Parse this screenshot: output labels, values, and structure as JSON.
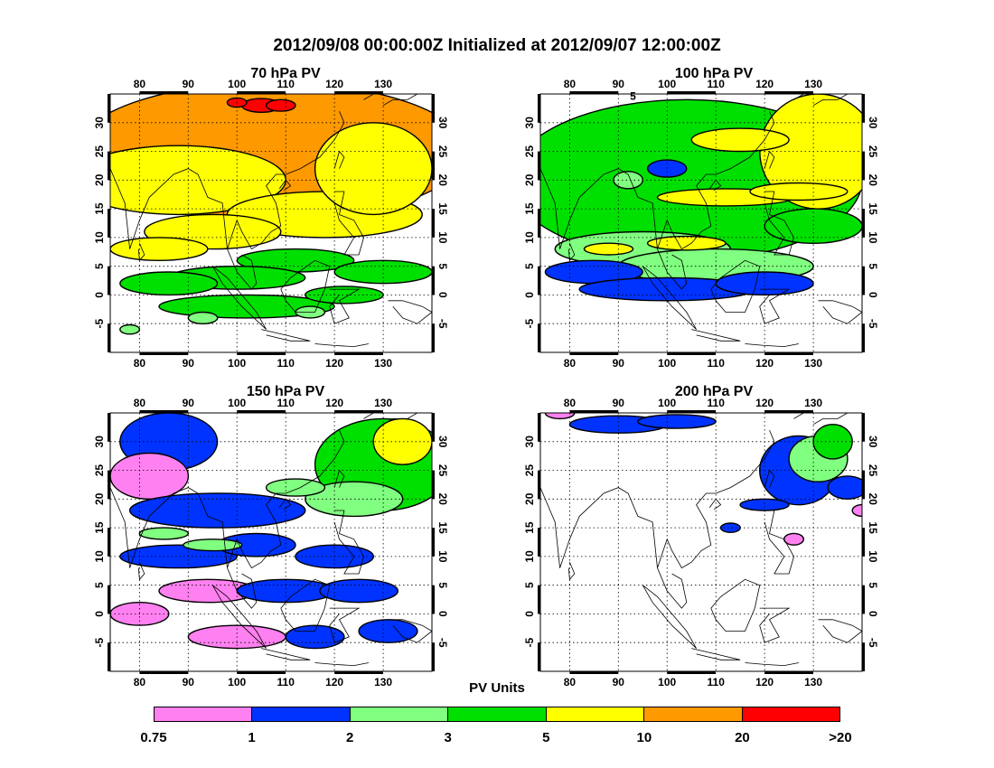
{
  "title": "2012/09/08 00:00:00Z Initialized at 2012/09/07 12:00:00Z",
  "legend": {
    "title": "PV Units",
    "colors": [
      "#ff80f0",
      "#0033ff",
      "#80ff80",
      "#00e000",
      "#ffff00",
      "#ff9900",
      "#ff0000"
    ],
    "labels": [
      "0.75",
      "1",
      "2",
      "3",
      "5",
      "10",
      "20",
      ">20"
    ]
  },
  "map": {
    "lon_ticks": [
      "80",
      "90",
      "100",
      "110",
      "120",
      "130"
    ],
    "lat_ticks": [
      "30",
      "25",
      "20",
      "15",
      "10",
      "5",
      "0",
      "-5"
    ]
  },
  "panels": [
    {
      "title": "70 hPa PV",
      "dominant_levels": [
        "20",
        "10",
        "5",
        "3"
      ],
      "contour_label": ""
    },
    {
      "title": "100 hPa PV",
      "dominant_levels": [
        "10",
        "5",
        "3",
        "2",
        "1"
      ],
      "contour_label": "5"
    },
    {
      "title": "150 hPa PV",
      "dominant_levels": [
        "3",
        "2",
        "1",
        "0.75"
      ],
      "contour_label": ""
    },
    {
      "title": "200 hPa PV",
      "dominant_levels": [
        "3",
        "2",
        "1",
        "0.75"
      ],
      "contour_label": ""
    }
  ]
}
